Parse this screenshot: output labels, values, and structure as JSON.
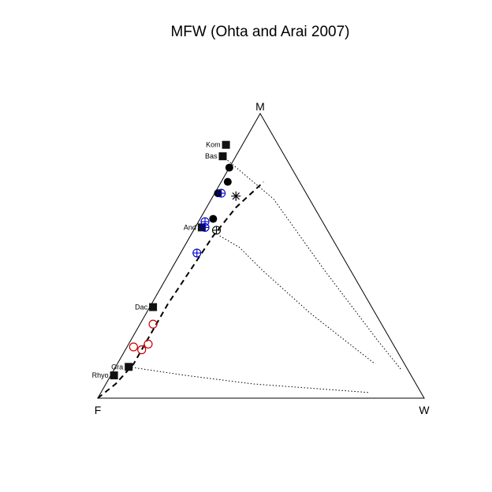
{
  "chart_data": {
    "type": "scatter",
    "subtype": "ternary",
    "title": "MFW (Ohta and Arai 2007)",
    "vertices": {
      "top": "M",
      "left": "F",
      "right": "W"
    },
    "reference_points": [
      {
        "label": "Kom",
        "M": 0.89,
        "F": 0.16,
        "W": -0.05
      },
      {
        "label": "Bas",
        "M": 0.85,
        "F": 0.19,
        "W": -0.04
      },
      {
        "label": "And",
        "M": 0.6,
        "F": 0.38,
        "W": 0.02
      },
      {
        "label": "Dac",
        "M": 0.32,
        "F": 0.67,
        "W": 0.01
      },
      {
        "label": "Gra",
        "M": 0.11,
        "F": 0.85,
        "W": 0.04
      },
      {
        "label": "Rhyo",
        "M": 0.08,
        "F": 0.91,
        "W": 0.01
      }
    ],
    "trend_line": {
      "style": "dashed",
      "points": [
        {
          "M": 0.0,
          "F": 1.0,
          "W": 0.0
        },
        {
          "M": 0.05,
          "F": 0.92,
          "W": 0.03
        },
        {
          "M": 0.12,
          "F": 0.83,
          "W": 0.05
        },
        {
          "M": 0.22,
          "F": 0.73,
          "W": 0.05
        },
        {
          "M": 0.33,
          "F": 0.62,
          "W": 0.05
        },
        {
          "M": 0.45,
          "F": 0.49,
          "W": 0.06
        },
        {
          "M": 0.57,
          "F": 0.36,
          "W": 0.07
        },
        {
          "M": 0.67,
          "F": 0.24,
          "W": 0.09
        },
        {
          "M": 0.76,
          "F": 0.11,
          "W": 0.13
        }
      ]
    },
    "weathering_lines": [
      {
        "style": "dotted",
        "points": [
          {
            "M": 0.85,
            "F": 0.19,
            "W": -0.04
          },
          {
            "M": 0.7,
            "F": 0.11,
            "W": 0.19
          },
          {
            "M": 0.45,
            "F": 0.08,
            "W": 0.47
          },
          {
            "M": 0.2,
            "F": 0.04,
            "W": 0.76
          },
          {
            "M": 0.1,
            "F": 0.02,
            "W": 0.88
          }
        ]
      },
      {
        "style": "dotted",
        "points": [
          {
            "M": 0.57,
            "F": 0.34,
            "W": 0.09
          },
          {
            "M": 0.53,
            "F": 0.3,
            "W": 0.17
          },
          {
            "M": 0.45,
            "F": 0.27,
            "W": 0.28
          },
          {
            "M": 0.3,
            "F": 0.2,
            "W": 0.5
          },
          {
            "M": 0.12,
            "F": 0.09,
            "W": 0.79
          }
        ]
      },
      {
        "style": "dotted",
        "points": [
          {
            "M": 0.11,
            "F": 0.85,
            "W": 0.04
          },
          {
            "M": 0.08,
            "F": 0.69,
            "W": 0.23
          },
          {
            "M": 0.05,
            "F": 0.5,
            "W": 0.45
          },
          {
            "M": 0.02,
            "F": 0.16,
            "W": 0.82
          }
        ]
      }
    ],
    "series": [
      {
        "color": "#000000",
        "marker": "filled-circle",
        "points": [
          {
            "M": 0.81,
            "F": 0.19,
            "W": 0.0
          },
          {
            "M": 0.76,
            "F": 0.22,
            "W": 0.02
          },
          {
            "M": 0.72,
            "F": 0.27,
            "W": 0.01
          },
          {
            "M": 0.63,
            "F": 0.33,
            "W": 0.04
          }
        ]
      },
      {
        "color": "#000000",
        "marker": "star",
        "points": [
          {
            "M": 0.71,
            "F": 0.22,
            "W": 0.07
          }
        ]
      },
      {
        "color": "#000000",
        "marker": "circle-plus",
        "points": [
          {
            "M": 0.59,
            "F": 0.34,
            "W": 0.07
          }
        ]
      },
      {
        "color": "#0000cc",
        "marker": "circle-plus",
        "points": [
          {
            "M": 0.72,
            "F": 0.26,
            "W": 0.02
          },
          {
            "M": 0.62,
            "F": 0.36,
            "W": 0.02
          },
          {
            "M": 0.6,
            "F": 0.37,
            "W": 0.03
          },
          {
            "M": 0.51,
            "F": 0.44,
            "W": 0.05
          }
        ]
      },
      {
        "color": "#cc0000",
        "marker": "open-circle",
        "points": [
          {
            "M": 0.26,
            "F": 0.7,
            "W": 0.04
          },
          {
            "M": 0.19,
            "F": 0.75,
            "W": 0.06
          },
          {
            "M": 0.18,
            "F": 0.8,
            "W": 0.02
          },
          {
            "M": 0.17,
            "F": 0.78,
            "W": 0.05
          }
        ]
      }
    ],
    "grid": false,
    "legend": false
  }
}
